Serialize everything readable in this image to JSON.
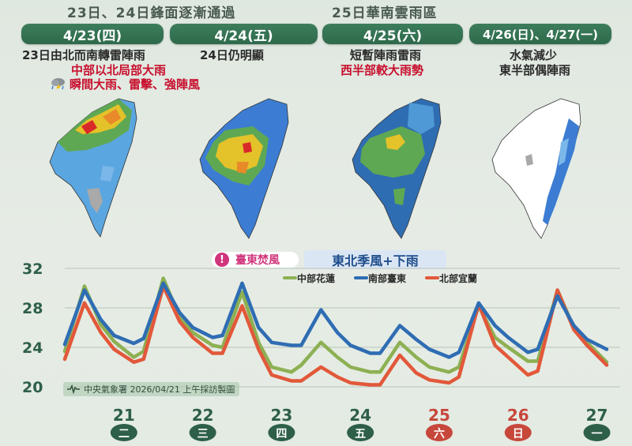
{
  "headlines": [
    "23日、24日鋒面逐漸通過",
    "25日華南雲雨區"
  ],
  "panels": [
    {
      "date": "4/23(四)",
      "desc": "23日由北而南轉雷陣雨"
    },
    {
      "date": "4/24(五)",
      "desc": "24日仍明顯"
    },
    {
      "date": "4/25(六)",
      "desc_lines": [
        "短暫陣雨雷雨",
        "西半部較大雨勢"
      ]
    },
    {
      "date": "4/26(日)、4/27(一)",
      "desc_lines": [
        "水氣減少",
        "東半部偶陣雨"
      ]
    }
  ],
  "warnings": [
    "中部以北局部大雨",
    "瞬間大雨、雷擊、強陣風"
  ],
  "badges": {
    "foehn": "臺東焚風",
    "monsoon": "東北季風+下雨"
  },
  "credit": "中央氣象署 2026/04/21 上午採訪製圖",
  "colors": {
    "green": "#8db053",
    "blue": "#2f6db3",
    "red": "#e2583a",
    "weekday": "#2e5f48",
    "weekend": "#c7473b"
  },
  "icons": [
    "thunderstorm-cloud-icon",
    "warning-icon",
    "cwa-logo-icon"
  ],
  "chart_data": {
    "type": "line",
    "ylim": [
      20,
      32
    ],
    "yticks": [
      20,
      24,
      28,
      32
    ],
    "x_labels": [
      {
        "day": "21",
        "weekday": "二",
        "weekend": false
      },
      {
        "day": "22",
        "weekday": "三",
        "weekend": false
      },
      {
        "day": "23",
        "weekday": "四",
        "weekend": false
      },
      {
        "day": "24",
        "weekday": "五",
        "weekend": false
      },
      {
        "day": "25",
        "weekday": "六",
        "weekend": true
      },
      {
        "day": "26",
        "weekday": "日",
        "weekend": true
      },
      {
        "day": "27",
        "weekday": "一",
        "weekend": false
      }
    ],
    "x_hours": [
      0,
      6,
      11,
      15,
      21,
      24,
      30,
      35,
      39,
      45,
      48,
      54,
      59,
      63,
      69,
      72,
      78,
      83,
      87,
      93,
      96,
      102,
      107,
      111,
      117,
      120,
      126,
      131,
      135,
      141,
      144,
      150,
      155,
      159,
      165
    ],
    "series": [
      {
        "name": "中部花蓮",
        "color": "#8db053",
        "values": [
          23.6,
          30.2,
          26.3,
          24.6,
          23.0,
          23.6,
          31.0,
          27.0,
          25.5,
          24.2,
          24.0,
          29.6,
          24.5,
          22.0,
          21.5,
          22.2,
          24.5,
          23.0,
          22.0,
          21.5,
          21.5,
          24.5,
          23.0,
          22.0,
          21.5,
          22.0,
          28.2,
          25.0,
          24.0,
          22.6,
          22.6,
          29.8,
          26.0,
          24.5,
          22.5
        ]
      },
      {
        "name": "南部臺東",
        "color": "#2f6db3",
        "values": [
          24.3,
          29.8,
          26.8,
          25.2,
          24.4,
          24.9,
          30.5,
          27.5,
          26.0,
          25.0,
          25.2,
          30.5,
          26.0,
          24.5,
          24.2,
          24.2,
          27.8,
          25.5,
          24.2,
          23.4,
          23.4,
          26.2,
          24.8,
          23.8,
          23.0,
          23.5,
          28.5,
          26.2,
          25.0,
          23.5,
          23.8,
          29.2,
          26.2,
          24.8,
          23.8
        ]
      },
      {
        "name": "北部宜蘭",
        "color": "#e2583a",
        "values": [
          22.8,
          28.5,
          25.5,
          23.8,
          22.5,
          22.8,
          30.2,
          26.6,
          25.0,
          23.4,
          23.4,
          28.2,
          23.8,
          21.2,
          20.6,
          20.6,
          22.0,
          21.0,
          20.4,
          20.2,
          20.2,
          23.2,
          21.4,
          20.7,
          20.4,
          21.0,
          28.4,
          24.2,
          23.0,
          21.2,
          21.6,
          29.8,
          25.8,
          24.2,
          22.2
        ]
      }
    ],
    "legend": "top-right"
  }
}
